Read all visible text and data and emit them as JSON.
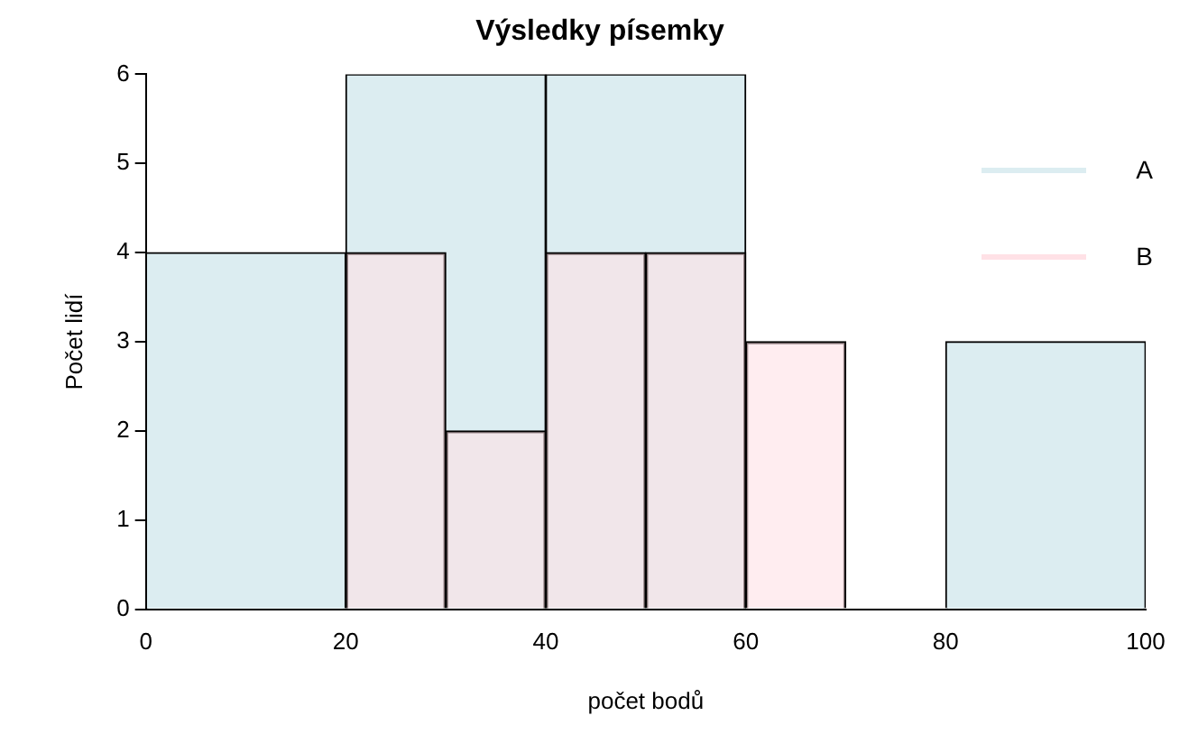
{
  "chart_data": {
    "type": "bar",
    "title": "Výsledky písemky",
    "xlabel": "počet bodů",
    "ylabel": "Počet lidí",
    "series": [
      {
        "name": "A",
        "color": "#dcedf1",
        "x": [
          10,
          30,
          50,
          70,
          90
        ],
        "values": [
          4,
          6,
          6,
          0,
          3
        ]
      },
      {
        "name": "B",
        "color": "#ffe1e6",
        "x": [
          25,
          35,
          45,
          55,
          65
        ],
        "values": [
          4,
          2,
          4,
          4,
          3
        ]
      }
    ],
    "xlim": [
      0,
      100
    ],
    "xticks": [
      0,
      20,
      40,
      60,
      80,
      100
    ],
    "ylim": [
      0,
      6
    ],
    "yticks": [
      0,
      1,
      2,
      3,
      4,
      5,
      6
    ],
    "grid": false,
    "legend": "top right"
  }
}
